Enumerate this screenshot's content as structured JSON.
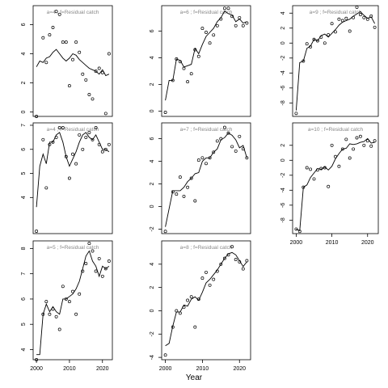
{
  "xlabel": "Year",
  "chart_data": [
    {
      "type": "scatter",
      "title": "a=4 ; f=Residual catch",
      "ylim": [
        -0.3,
        7.3
      ],
      "yticks": [
        0,
        2,
        4,
        6
      ],
      "xlim": [
        1999,
        2023
      ],
      "xticks": [
        2000,
        2010,
        2020
      ],
      "show_xticks": false,
      "series": [
        {
          "type": "line",
          "x": [
            2000,
            2001,
            2002,
            2003,
            2004,
            2005,
            2006,
            2007,
            2008,
            2009,
            2010,
            2011,
            2012,
            2013,
            2014,
            2015,
            2016,
            2017,
            2018,
            2019,
            2020,
            2021,
            2022
          ],
          "y": [
            3.1,
            3.5,
            3.4,
            3.7,
            3.8,
            4.1,
            4.3,
            4.0,
            3.7,
            3.5,
            3.7,
            4.0,
            3.9,
            3.6,
            3.4,
            3.2,
            3.0,
            2.9,
            2.8,
            2.6,
            2.9,
            2.5,
            2.6
          ]
        },
        {
          "type": "points",
          "x": [
            2000,
            2002,
            2003,
            2004,
            2005,
            2006,
            2007,
            2008,
            2009,
            2010,
            2011,
            2012,
            2013,
            2014,
            2015,
            2016,
            2017,
            2018,
            2019,
            2020,
            2021,
            2022
          ],
          "y": [
            -0.3,
            5.1,
            3.4,
            5.3,
            5.8,
            6.9,
            6.7,
            4.8,
            4.8,
            1.8,
            3.6,
            4.8,
            4.1,
            2.6,
            2.2,
            1.2,
            0.9,
            2.8,
            3.0,
            2.7,
            -0.1,
            4.0
          ]
        }
      ]
    },
    {
      "type": "scatter",
      "title": "a=6 ; f=Residual catch",
      "ylim": [
        -0.4,
        7.9
      ],
      "yticks": [
        0,
        2,
        4,
        6
      ],
      "xlim": [
        1999,
        2023
      ],
      "xticks": [
        2000,
        2010,
        2020
      ],
      "show_xticks": false,
      "series": [
        {
          "type": "line",
          "x": [
            2000,
            2001,
            2002,
            2003,
            2004,
            2005,
            2006,
            2007,
            2008,
            2009,
            2010,
            2011,
            2012,
            2013,
            2014,
            2015,
            2016,
            2017,
            2018,
            2019,
            2020,
            2021,
            2022
          ],
          "y": [
            0.8,
            2.3,
            2.3,
            3.9,
            3.8,
            3.3,
            3.4,
            3.5,
            4.7,
            4.3,
            5.0,
            5.6,
            5.9,
            6.2,
            6.7,
            7.0,
            7.5,
            7.3,
            7.2,
            6.7,
            6.9,
            6.6,
            6.7
          ]
        },
        {
          "type": "points",
          "x": [
            2000,
            2002,
            2003,
            2004,
            2005,
            2006,
            2007,
            2008,
            2009,
            2010,
            2011,
            2012,
            2013,
            2014,
            2015,
            2016,
            2017,
            2018,
            2019,
            2020,
            2021,
            2022
          ],
          "y": [
            -0.1,
            2.3,
            3.9,
            3.7,
            3.2,
            2.2,
            2.8,
            4.6,
            4.1,
            6.2,
            5.9,
            5.1,
            5.7,
            6.4,
            6.9,
            7.7,
            7.7,
            7.1,
            6.4,
            7.0,
            6.4,
            6.6
          ]
        }
      ]
    },
    {
      "type": "scatter",
      "title": "a=9 ; f=Residual catch",
      "ylim": [
        -9.8,
        5.0
      ],
      "yticks": [
        -8,
        -6,
        -4,
        -2,
        0,
        2,
        4
      ],
      "xlim": [
        1999,
        2023
      ],
      "xticks": [
        2000,
        2010,
        2020
      ],
      "show_xticks": false,
      "series": [
        {
          "type": "line",
          "x": [
            2000,
            2001,
            2002,
            2003,
            2004,
            2005,
            2006,
            2007,
            2008,
            2009,
            2010,
            2011,
            2012,
            2013,
            2014,
            2015,
            2016,
            2017,
            2018,
            2019,
            2020,
            2021,
            2022
          ],
          "y": [
            -9.0,
            -2.6,
            -2.4,
            -0.7,
            -0.4,
            0.5,
            0.3,
            1.0,
            1.2,
            0.8,
            1.3,
            1.8,
            2.4,
            2.8,
            3.0,
            3.2,
            3.6,
            3.9,
            4.2,
            3.7,
            3.3,
            3.5,
            2.6
          ]
        },
        {
          "type": "points",
          "x": [
            2000,
            2002,
            2003,
            2004,
            2005,
            2006,
            2007,
            2008,
            2009,
            2010,
            2011,
            2012,
            2013,
            2014,
            2015,
            2016,
            2017,
            2018,
            2019,
            2020,
            2021,
            2022
          ],
          "y": [
            -9.4,
            -2.4,
            -0.1,
            -0.5,
            0.5,
            0.3,
            0.8,
            0.0,
            1.1,
            2.6,
            1.5,
            3.2,
            3.0,
            3.3,
            1.6,
            3.4,
            4.8,
            3.8,
            3.4,
            3.2,
            3.6,
            2.1
          ]
        }
      ]
    },
    {
      "type": "scatter",
      "title": "a=4 ; f=Residual catch",
      "ylim": [
        2.5,
        7.1
      ],
      "yticks": [
        4,
        5,
        6,
        7
      ],
      "xlim": [
        1999,
        2023
      ],
      "xticks": [
        2000,
        2010,
        2020
      ],
      "show_xticks": false,
      "series": [
        {
          "type": "line",
          "x": [
            2000,
            2001,
            2002,
            2003,
            2004,
            2005,
            2006,
            2007,
            2008,
            2009,
            2010,
            2011,
            2012,
            2013,
            2014,
            2015,
            2016,
            2017,
            2018,
            2019,
            2020,
            2021,
            2022
          ],
          "y": [
            3.6,
            5.3,
            5.8,
            5.4,
            6.3,
            6.3,
            6.6,
            6.7,
            6.3,
            5.7,
            5.3,
            5.6,
            5.9,
            6.3,
            6.6,
            6.7,
            6.5,
            6.4,
            6.6,
            6.3,
            6.0,
            6.0,
            5.9
          ]
        },
        {
          "type": "points",
          "x": [
            2000,
            2002,
            2003,
            2004,
            2005,
            2006,
            2007,
            2008,
            2009,
            2010,
            2011,
            2012,
            2013,
            2014,
            2015,
            2016,
            2017,
            2018,
            2019,
            2020,
            2021,
            2022
          ],
          "y": [
            2.6,
            6.4,
            4.4,
            6.2,
            6.3,
            6.5,
            6.9,
            6.9,
            5.7,
            4.8,
            5.8,
            5.4,
            6.6,
            6.0,
            6.5,
            6.7,
            6.4,
            6.9,
            6.2,
            5.9,
            6.0,
            6.2
          ]
        }
      ]
    },
    {
      "type": "scatter",
      "title": "a=7 ; f=Residual catch",
      "ylim": [
        -2.4,
        7.4
      ],
      "yticks": [
        -2,
        0,
        2,
        4,
        6
      ],
      "xlim": [
        1999,
        2023
      ],
      "xticks": [
        2000,
        2010,
        2020
      ],
      "show_xticks": false,
      "series": [
        {
          "type": "line",
          "x": [
            2000,
            2001,
            2002,
            2003,
            2004,
            2005,
            2006,
            2007,
            2008,
            2009,
            2010,
            2011,
            2012,
            2013,
            2014,
            2015,
            2016,
            2017,
            2018,
            2019,
            2020,
            2021,
            2022
          ],
          "y": [
            -1.8,
            -0.2,
            1.4,
            1.4,
            1.4,
            1.7,
            2.2,
            2.5,
            2.9,
            3.0,
            4.0,
            4.3,
            4.3,
            4.8,
            5.1,
            5.9,
            6.1,
            6.5,
            6.3,
            5.9,
            5.2,
            5.4,
            4.3
          ]
        },
        {
          "type": "points",
          "x": [
            2000,
            2002,
            2003,
            2004,
            2005,
            2006,
            2007,
            2008,
            2009,
            2010,
            2011,
            2012,
            2013,
            2014,
            2015,
            2016,
            2017,
            2018,
            2019,
            2020,
            2021,
            2022
          ],
          "y": [
            -2.2,
            1.3,
            1.1,
            2.6,
            0.9,
            1.7,
            2.5,
            0.5,
            4.1,
            4.3,
            3.8,
            4.3,
            4.8,
            5.8,
            6.0,
            7.0,
            6.5,
            5.3,
            4.9,
            6.2,
            5.1,
            4.3
          ]
        }
      ]
    },
    {
      "type": "scatter",
      "title": "a=10 ; f=Residual catch",
      "ylim": [
        -9.8,
        5.0
      ],
      "yticks": [
        -8,
        -6,
        -4,
        -2,
        0,
        2
      ],
      "xlim": [
        1999,
        2023
      ],
      "xticks": [
        2000,
        2010,
        2020
      ],
      "show_xticks": true,
      "series": [
        {
          "type": "line",
          "x": [
            2000,
            2001,
            2002,
            2003,
            2004,
            2005,
            2006,
            2007,
            2008,
            2009,
            2010,
            2011,
            2012,
            2013,
            2014,
            2015,
            2016,
            2017,
            2018,
            2019,
            2020,
            2021,
            2022
          ],
          "y": [
            -9.2,
            -9.4,
            -3.6,
            -3.3,
            -2.3,
            -1.7,
            -1.1,
            -1.2,
            -0.9,
            -1.3,
            -0.8,
            0.2,
            0.9,
            1.5,
            1.6,
            2.2,
            2.1,
            2.2,
            2.4,
            2.5,
            2.9,
            2.3,
            2.4
          ]
        },
        {
          "type": "points",
          "x": [
            2000,
            2001,
            2002,
            2003,
            2004,
            2005,
            2006,
            2007,
            2008,
            2009,
            2010,
            2011,
            2012,
            2013,
            2014,
            2015,
            2016,
            2017,
            2018,
            2019,
            2020,
            2021,
            2022
          ],
          "y": [
            -9.2,
            -9.5,
            -3.6,
            -1.0,
            -1.2,
            -2.5,
            -1.3,
            -1.1,
            -1.0,
            -3.5,
            2.0,
            0.5,
            -0.8,
            1.5,
            2.8,
            0.3,
            1.5,
            3.0,
            3.2,
            2.0,
            2.6,
            1.9,
            2.6
          ]
        }
      ]
    },
    {
      "type": "scatter",
      "title": "a=5 ; f=Residual catch",
      "ylim": [
        3.6,
        8.3
      ],
      "yticks": [
        4,
        5,
        6,
        7,
        8
      ],
      "xlim": [
        1999,
        2023
      ],
      "xticks": [
        2000,
        2010,
        2020
      ],
      "show_xticks": true,
      "series": [
        {
          "type": "line",
          "x": [
            2000,
            2001,
            2002,
            2003,
            2004,
            2005,
            2006,
            2007,
            2008,
            2009,
            2010,
            2011,
            2012,
            2013,
            2014,
            2015,
            2016,
            2017,
            2018,
            2019,
            2020,
            2021,
            2022
          ],
          "y": [
            3.8,
            3.8,
            5.4,
            5.8,
            5.5,
            5.7,
            5.5,
            5.4,
            6.0,
            6.0,
            6.1,
            6.2,
            6.4,
            6.7,
            7.2,
            7.7,
            7.9,
            7.5,
            7.3,
            6.9,
            7.3,
            7.2,
            7.3
          ]
        },
        {
          "type": "points",
          "x": [
            2000,
            2002,
            2003,
            2004,
            2005,
            2006,
            2007,
            2008,
            2009,
            2010,
            2011,
            2012,
            2013,
            2014,
            2015,
            2016,
            2017,
            2018,
            2019,
            2020,
            2021,
            2022
          ],
          "y": [
            3.6,
            5.4,
            5.9,
            5.4,
            5.6,
            5.3,
            4.8,
            6.5,
            6.0,
            5.9,
            6.3,
            5.4,
            6.2,
            7.1,
            7.4,
            8.2,
            7.9,
            7.1,
            7.6,
            6.9,
            7.2,
            7.5
          ]
        }
      ]
    },
    {
      "type": "scatter",
      "title": "a=8 ; f=Residual catch",
      "ylim": [
        -4.2,
        6.0
      ],
      "yticks": [
        -4,
        -2,
        0,
        2,
        4
      ],
      "xlim": [
        1999,
        2023
      ],
      "xticks": [
        2000,
        2010,
        2020
      ],
      "show_xticks": true,
      "series": [
        {
          "type": "line",
          "x": [
            2000,
            2001,
            2002,
            2003,
            2004,
            2005,
            2006,
            2007,
            2008,
            2009,
            2010,
            2011,
            2012,
            2013,
            2014,
            2015,
            2016,
            2017,
            2018,
            2019,
            2020,
            2021,
            2022
          ],
          "y": [
            -3.0,
            -2.8,
            -1.3,
            -0.1,
            -0.1,
            0.5,
            0.4,
            1.0,
            1.2,
            0.9,
            1.6,
            2.4,
            2.7,
            3.1,
            3.5,
            4.0,
            4.5,
            4.9,
            5.0,
            4.8,
            4.3,
            3.8,
            4.2
          ]
        },
        {
          "type": "points",
          "x": [
            2000,
            2002,
            2003,
            2004,
            2005,
            2006,
            2007,
            2008,
            2009,
            2010,
            2011,
            2012,
            2013,
            2014,
            2015,
            2016,
            2017,
            2018,
            2019,
            2020,
            2021,
            2022
          ],
          "y": [
            -3.8,
            -1.4,
            0.0,
            -0.2,
            0.3,
            0.9,
            1.2,
            -1.4,
            1.0,
            2.8,
            3.3,
            2.2,
            2.7,
            3.4,
            4.0,
            4.5,
            4.8,
            5.5,
            4.4,
            4.2,
            3.6,
            4.3
          ]
        }
      ]
    }
  ]
}
